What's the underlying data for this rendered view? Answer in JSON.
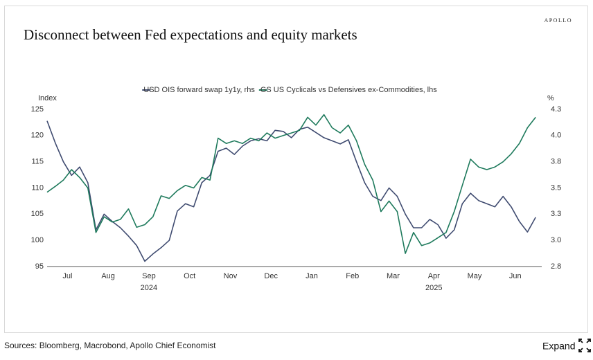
{
  "page": {
    "brand": "APOLLO",
    "source": "Sources: Bloomberg, Macrobond, Apollo Chief Economist",
    "expand": "Expand"
  },
  "chart_data": {
    "type": "line",
    "title": "Disconnect between Fed expectations and equity markets",
    "ylabel": "Index",
    "y2label": "%",
    "x": [
      0,
      0.2,
      0.4,
      0.6,
      0.8,
      1,
      1.2,
      1.4,
      1.6,
      1.8,
      2,
      2.2,
      2.4,
      2.6,
      2.8,
      3,
      3.2,
      3.4,
      3.6,
      3.8,
      4,
      4.2,
      4.4,
      4.6,
      4.8,
      5,
      5.2,
      5.4,
      5.6,
      5.8,
      6,
      6.2,
      6.4,
      6.6,
      6.8,
      7,
      7.2,
      7.4,
      7.6,
      7.8,
      8,
      8.2,
      8.4,
      8.6,
      8.8,
      9,
      9.2,
      9.4,
      9.6,
      9.8,
      10,
      10.2,
      10.4,
      10.6,
      10.8,
      11,
      11.2,
      11.4,
      11.6,
      11.8,
      12
    ],
    "xlim": [
      0,
      12.15
    ],
    "xticks": [
      {
        "value": 0.5,
        "label": "Jul"
      },
      {
        "value": 1.5,
        "label": "Aug"
      },
      {
        "value": 2.5,
        "label": "Sep"
      },
      {
        "value": 3.5,
        "label": "Oct"
      },
      {
        "value": 4.5,
        "label": "Nov"
      },
      {
        "value": 5.5,
        "label": "Dec"
      },
      {
        "value": 6.5,
        "label": "Jan"
      },
      {
        "value": 7.5,
        "label": "Feb"
      },
      {
        "value": 8.5,
        "label": "Mar"
      },
      {
        "value": 9.5,
        "label": "Apr"
      },
      {
        "value": 10.5,
        "label": "May"
      },
      {
        "value": 11.5,
        "label": "Jun"
      }
    ],
    "xticks_years": [
      {
        "value": 2.5,
        "label": "2024"
      },
      {
        "value": 9.5,
        "label": "2025"
      }
    ],
    "ylim": [
      95,
      125
    ],
    "yticks": [
      95,
      100,
      105,
      110,
      115,
      120,
      125
    ],
    "y2lim": [
      2.75,
      4.25
    ],
    "y2ticks": [
      {
        "value": 2.75,
        "label": "2.8"
      },
      {
        "value": 3,
        "label": "3.0"
      },
      {
        "value": 3.25,
        "label": "3.3"
      },
      {
        "value": 3.5,
        "label": "3.5"
      },
      {
        "value": 3.75,
        "label": "3.8"
      },
      {
        "value": 4,
        "label": "4.0"
      },
      {
        "value": 4.25,
        "label": "4.3"
      }
    ],
    "legend": "top",
    "series": [
      {
        "name": "USD OIS forward swap 1y1y, rhs",
        "color": "#3f4b70",
        "axis": "y2",
        "values": [
          4.14,
          3.93,
          3.75,
          3.62,
          3.7,
          3.55,
          3.1,
          3.25,
          3.18,
          3.12,
          3.04,
          2.95,
          2.8,
          2.87,
          2.93,
          3.0,
          3.28,
          3.35,
          3.32,
          3.55,
          3.62,
          3.85,
          3.88,
          3.82,
          3.9,
          3.95,
          3.97,
          3.95,
          4.05,
          4.04,
          3.98,
          4.06,
          4.08,
          4.03,
          3.98,
          3.95,
          3.92,
          3.96,
          3.75,
          3.55,
          3.42,
          3.38,
          3.5,
          3.42,
          3.25,
          3.12,
          3.12,
          3.2,
          3.15,
          3.02,
          3.1,
          3.35,
          3.45,
          3.38,
          3.35,
          3.32,
          3.42,
          3.32,
          3.18,
          3.08,
          3.22
        ]
      },
      {
        "name": "GS US Cyclicals vs Defensives ex-Commodities, lhs",
        "color": "#1e7a5c",
        "axis": "y",
        "values": [
          109.2,
          110.3,
          111.5,
          113.5,
          112,
          110,
          101.5,
          104.5,
          103.5,
          104,
          106,
          102.5,
          103,
          104.5,
          108.5,
          108,
          109.5,
          110.5,
          110,
          112,
          111.5,
          119.5,
          118.5,
          119,
          118.5,
          119.5,
          119,
          120.5,
          119.5,
          120,
          120.5,
          121,
          123.5,
          122,
          124,
          121.5,
          120.5,
          122,
          119,
          114.5,
          111.5,
          105.5,
          107.5,
          105.5,
          97.5,
          101.5,
          99,
          99.5,
          100.5,
          101.5,
          105.5,
          110.5,
          115.5,
          114,
          113.5,
          114,
          115,
          116.5,
          118.5,
          121.5,
          123.5
        ]
      }
    ]
  }
}
